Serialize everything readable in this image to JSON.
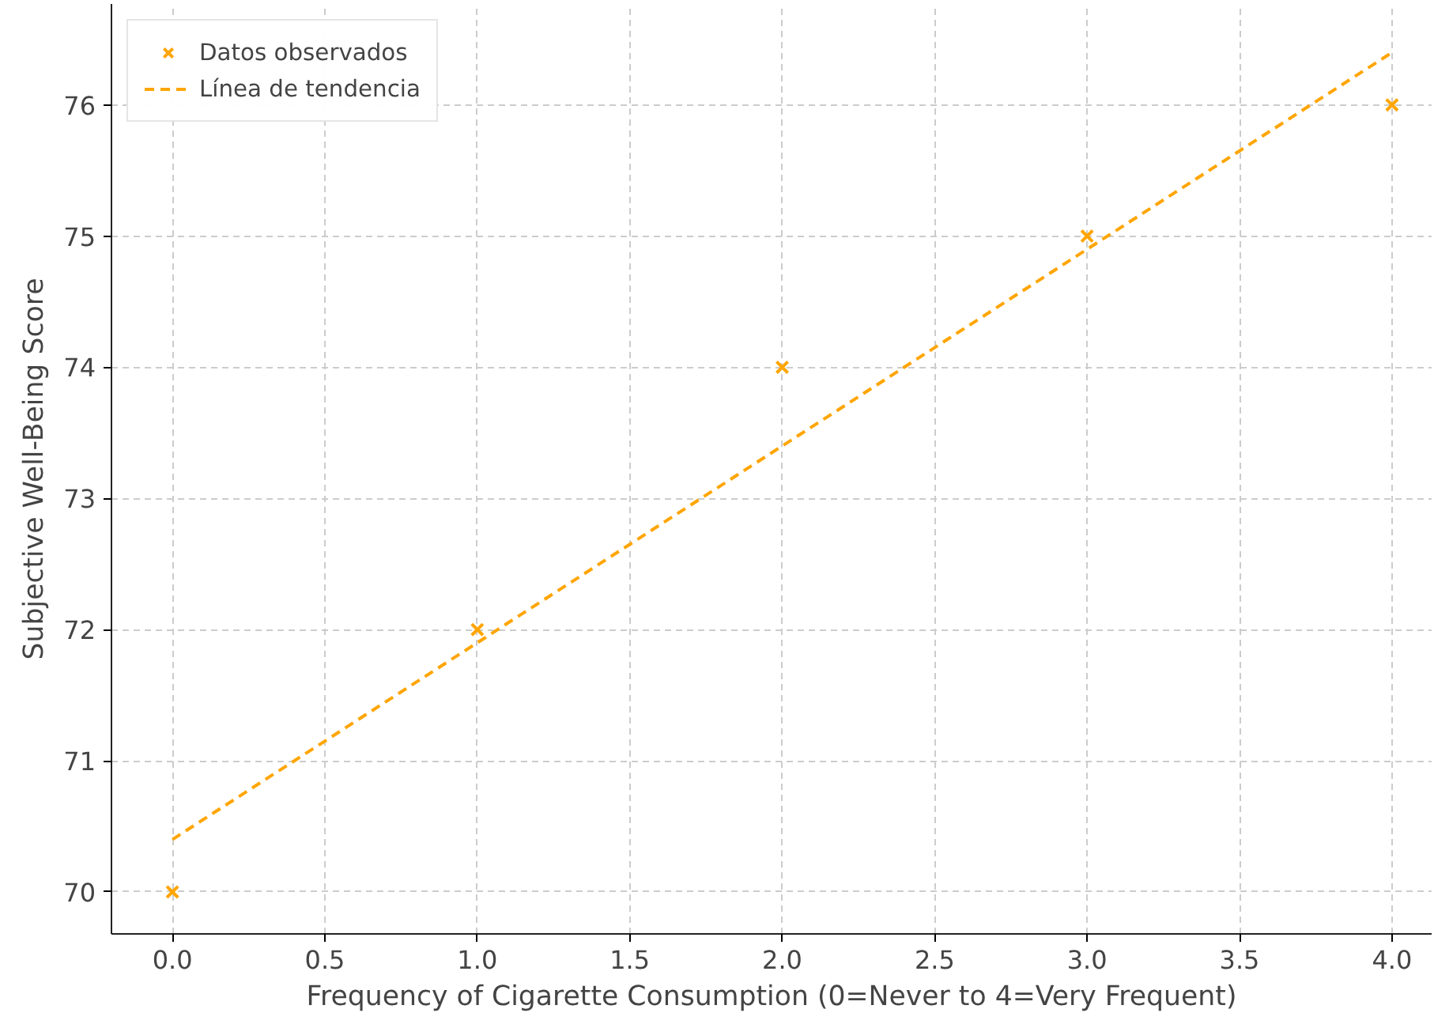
{
  "chart_data": {
    "type": "scatter",
    "xlabel": "Frequency of Cigarette Consumption (0=Never to 4=Very Frequent)",
    "ylabel": "Subjective Well-Being Score",
    "xlim": [
      -0.2,
      4.13
    ],
    "ylim": [
      69.68,
      76.77
    ],
    "xticks": [
      {
        "value": 0,
        "label": "0.0"
      },
      {
        "value": 0.5,
        "label": "0.5"
      },
      {
        "value": 1,
        "label": "1.0"
      },
      {
        "value": 1.5,
        "label": "1.5"
      },
      {
        "value": 2,
        "label": "2.0"
      },
      {
        "value": 2.5,
        "label": "2.5"
      },
      {
        "value": 3,
        "label": "3.0"
      },
      {
        "value": 3.5,
        "label": "3.5"
      },
      {
        "value": 4,
        "label": "4.0"
      }
    ],
    "yticks": [
      70,
      71,
      72,
      73,
      74,
      75,
      76
    ],
    "grid": true,
    "legend": "top left",
    "series": [
      {
        "name": "Datos observados",
        "marker": "cross",
        "color": "#ffa500",
        "x": [
          0,
          1,
          2,
          3,
          4
        ],
        "values": [
          70,
          72,
          74,
          75,
          76
        ]
      },
      {
        "name": "Línea de tendencia",
        "type": "line",
        "line_style": "dashed",
        "color": "#ffa500",
        "x": [
          0,
          4
        ],
        "values": [
          70.4,
          76.4
        ]
      }
    ]
  }
}
